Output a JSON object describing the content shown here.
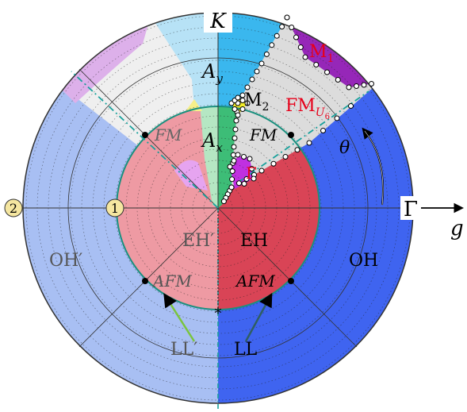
{
  "labels": {
    "K": "K",
    "Gamma": "Γ",
    "g": "g",
    "theta": "θ",
    "Ay": "A",
    "Ay_sub": "y",
    "Ax": "A",
    "Ax_sub": "x",
    "M1": "M",
    "M1_sub": "1",
    "M2": "M",
    "M2_sub": "2",
    "FMU6": "FM",
    "FMU6_sub": "U",
    "FMU6_subsub": "6",
    "FM_left": "FM",
    "FM_right": "FM",
    "EH_prime": "EH′",
    "EH": "EH",
    "OH_prime": "OH′",
    "OH": "OH",
    "AFM_left": "AFM",
    "AFM_right": "AFM",
    "LL_prime": "LL′",
    "LL": "LL",
    "tick_1": "1",
    "tick_2": "2",
    "Gamma_point": "Γ",
    "star": "∗"
  },
  "colors": {
    "oh_right": "#3f64f0",
    "oh_left": "#a8bff3",
    "eh_right": "#d94456",
    "eh_left": "#ee9aa3",
    "fm_gray": "#dcdcdc",
    "fm_left": "#efefef",
    "ay_cyan": "#3ab7ee",
    "ay_light": "#b7e2f6",
    "ax_green": "#3dbd77",
    "ax_light": "#b5e7c3",
    "m1_purple": "#9627b8",
    "m1_light": "#ddb0ea",
    "gamma_phase": "#c030e0",
    "m2_yellow": "#f4ee2a",
    "teal": "#1aa19c",
    "label_red": "#e6001a"
  }
}
